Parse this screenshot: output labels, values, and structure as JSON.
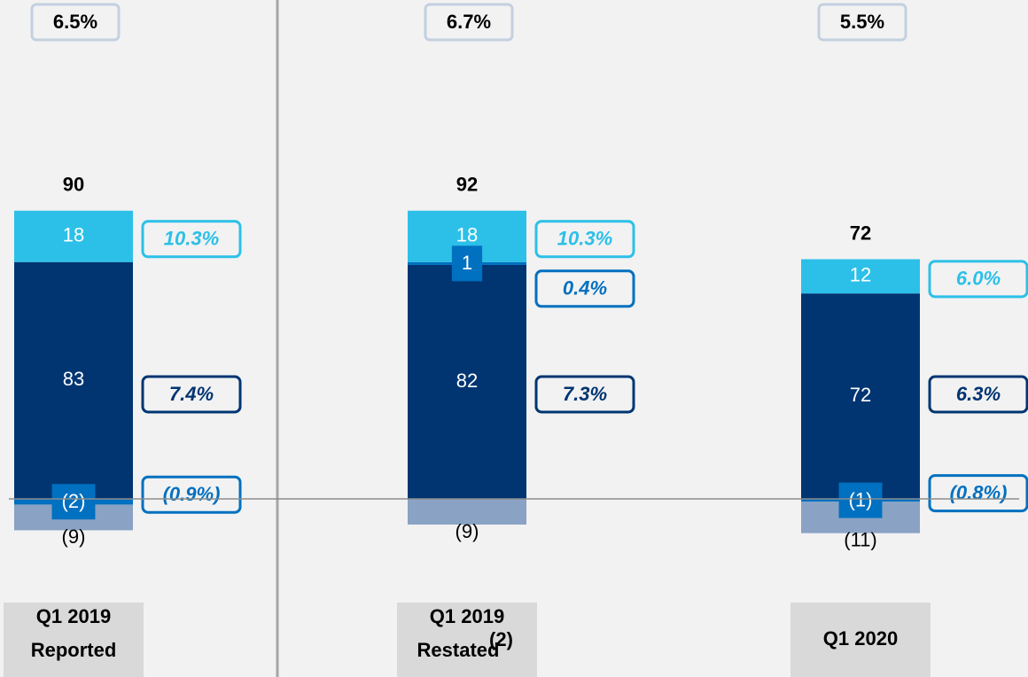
{
  "chart_data": {
    "type": "bar",
    "stacked": true,
    "categories": [
      [
        "Q1 2019",
        "Reported"
      ],
      [
        "Q1 2019",
        "Restated"
      ],
      [
        "Q1 2020"
      ]
    ],
    "category_superscripts": [
      {
        "category": 1,
        "label": "(2)"
      }
    ],
    "top_labels": {
      "values": [
        6.5,
        6.7,
        5.5
      ],
      "value_labels": [
        "6.5%",
        "6.7%",
        "5.5%"
      ]
    },
    "totals": [
      90,
      92,
      72
    ],
    "series": [
      {
        "color": "#003572",
        "values": [
          83,
          82,
          72
        ],
        "margins": {
          "values": [
            7.4,
            7.3,
            6.3
          ],
          "value_labels": [
            "7.4%",
            "7.3%",
            "6.3%"
          ]
        }
      },
      {
        "color": "#0070c0",
        "values": [
          -2,
          1,
          -1
        ],
        "value_labels": [
          "(2)",
          "1",
          "(1)"
        ],
        "margins": {
          "values": [
            -0.9,
            0.4,
            -0.8
          ],
          "value_labels": [
            "(0.9%)",
            "0.4%",
            "(0.8%)"
          ]
        }
      },
      {
        "color": "#2cc0e8",
        "values": [
          18,
          18,
          12
        ],
        "margins": {
          "values": [
            10.3,
            10.3,
            6.0
          ],
          "value_labels": [
            "10.3%",
            "10.3%",
            "6.0%"
          ]
        }
      },
      {
        "color": "#8aa2c4",
        "values": [
          -9,
          -9,
          -11
        ],
        "value_labels": [
          "(9)",
          "(9)",
          "(11)"
        ]
      }
    ]
  }
}
